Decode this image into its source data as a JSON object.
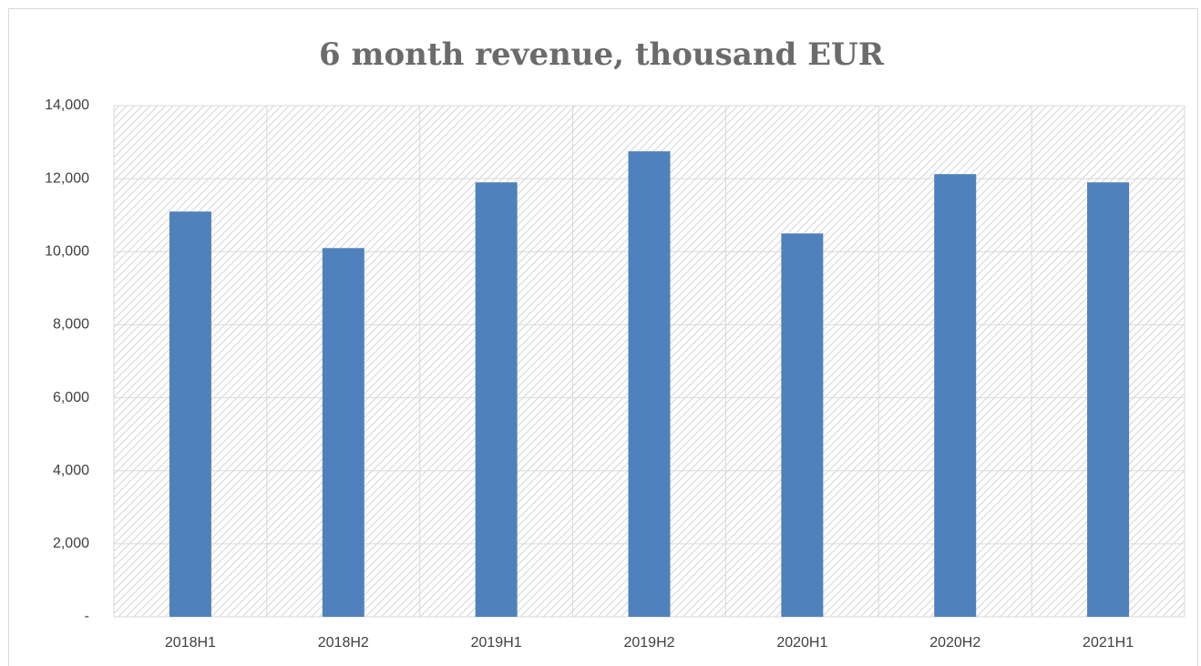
{
  "chart_data": {
    "type": "bar",
    "title": "6 month revenue, thousand EUR",
    "categories": [
      "2018H1",
      "2018H2",
      "2019H1",
      "2019H2",
      "2020H1",
      "2020H2",
      "2021H1"
    ],
    "values": [
      11100,
      10100,
      11900,
      12750,
      10500,
      12125,
      11900
    ],
    "color": "#4f81bd",
    "ylim": [
      0,
      14000
    ],
    "yticks": [
      {
        "value": 0,
        "label": "-"
      },
      {
        "value": 2000,
        "label": "2,000"
      },
      {
        "value": 4000,
        "label": "4,000"
      },
      {
        "value": 6000,
        "label": "6,000"
      },
      {
        "value": 8000,
        "label": "8,000"
      },
      {
        "value": 10000,
        "label": "10,000"
      },
      {
        "value": 12000,
        "label": "12,000"
      },
      {
        "value": 14000,
        "label": "14,000"
      }
    ],
    "grid": true
  }
}
